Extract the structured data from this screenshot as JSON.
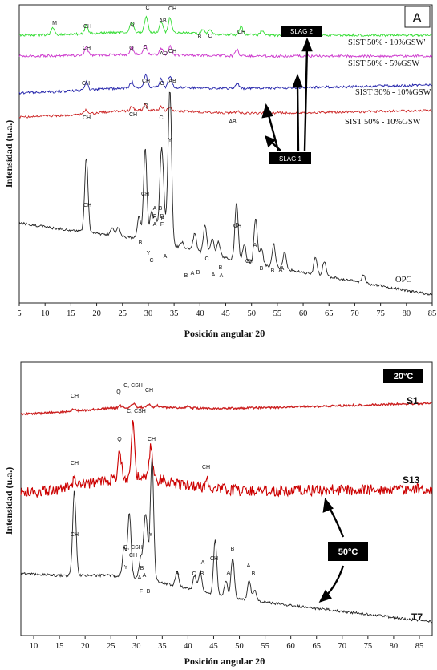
{
  "chart_data": [
    {
      "type": "line",
      "panel_letter": "A",
      "xlabel": "Posición angular 2θ",
      "ylabel": "Intensidad (u.a.)",
      "xlim": [
        5,
        85
      ],
      "xticks": [
        5,
        10,
        15,
        20,
        25,
        30,
        35,
        40,
        45,
        50,
        55,
        60,
        65,
        70,
        75,
        80,
        85
      ],
      "grid": false,
      "series": [
        {
          "name": "SIST 50% - 10%GSW'",
          "color": "#33dd33",
          "peaks": [
            [
              11.5,
              0.5
            ],
            [
              18,
              0.6
            ],
            [
              26.8,
              0.7
            ],
            [
              29.6,
              1.0
            ],
            [
              32.5,
              0.7
            ],
            [
              34.2,
              1.0
            ],
            [
              40.6,
              0.3
            ],
            [
              42,
              0.35
            ],
            [
              48,
              0.6
            ],
            [
              52,
              0.3
            ]
          ]
        },
        {
          "name": "SIST 50% - 5%GSW",
          "color": "#cc33cc",
          "peaks": [
            [
              18,
              0.7
            ],
            [
              26.8,
              0.6
            ],
            [
              29.4,
              0.7
            ],
            [
              32.5,
              0.5
            ],
            [
              34.2,
              0.7
            ],
            [
              47.2,
              0.5
            ]
          ]
        },
        {
          "name": "SIST 30% - 10%GSW",
          "color": "#2222aa",
          "peaks": [
            [
              18,
              0.6
            ],
            [
              26.8,
              0.4
            ],
            [
              29.5,
              0.9
            ],
            [
              32.5,
              0.6
            ],
            [
              34.2,
              0.8
            ],
            [
              47.2,
              0.4
            ]
          ]
        },
        {
          "name": "SIST 50% - 10%GSW",
          "color": "#cc2222",
          "peaks": [
            [
              18,
              0.4
            ],
            [
              26.8,
              0.4
            ],
            [
              29.4,
              0.6
            ],
            [
              32.5,
              0.4
            ],
            [
              34.2,
              0.3
            ],
            [
              47.2,
              0.2
            ]
          ]
        },
        {
          "name": "OPC",
          "color": "#222222",
          "peaks": [
            [
              18,
              1.3
            ],
            [
              23,
              0.12
            ],
            [
              24.2,
              0.15
            ],
            [
              28.2,
              0.4
            ],
            [
              29.4,
              1.6
            ],
            [
              30.6,
              0.5
            ],
            [
              31.4,
              0.4
            ],
            [
              32.4,
              1.0
            ],
            [
              32.8,
              1.0
            ],
            [
              33.7,
              0.4
            ],
            [
              34.2,
              2.6
            ],
            [
              36.5,
              0.1
            ],
            [
              39,
              0.3
            ],
            [
              41,
              0.5
            ],
            [
              42.4,
              0.3
            ],
            [
              43.6,
              0.25
            ],
            [
              47.1,
              1.0
            ],
            [
              48.6,
              0.3
            ],
            [
              50.8,
              0.8
            ],
            [
              51.9,
              0.3
            ],
            [
              54.3,
              0.4
            ],
            [
              56.4,
              0.3
            ],
            [
              62.4,
              0.3
            ],
            [
              64.1,
              0.25
            ],
            [
              71.7,
              0.15
            ]
          ]
        }
      ],
      "annotations": [
        "SLAG 2",
        "SLAG 1"
      ],
      "peak_labels": [
        "M",
        "CH",
        "Q",
        "C",
        "AB",
        "CH",
        "B",
        "C",
        "CH",
        "CH",
        "Q",
        "C",
        "AD",
        "CH",
        "CH",
        "CH",
        "C",
        "AB",
        "CH",
        "CH",
        "Q",
        "C",
        "AB",
        "CH",
        "CH",
        "Y",
        "B",
        "Y",
        "C",
        "A",
        "B",
        "F",
        "A",
        "B",
        "F",
        "CH",
        "A",
        "B",
        "C",
        "A",
        "B",
        "A",
        "D",
        "CH",
        "A",
        "B",
        "B",
        "A",
        "A",
        "B",
        "A",
        "B"
      ],
      "end_label": "OPC"
    },
    {
      "type": "line",
      "xlabel": "Posición angular 2θ",
      "ylabel": "Intensidad (u.a.)",
      "xlim": [
        7.5,
        87.5
      ],
      "xticks": [
        10,
        15,
        20,
        25,
        30,
        35,
        40,
        45,
        50,
        55,
        60,
        65,
        70,
        75,
        80,
        85
      ],
      "grid": false,
      "annotations": [
        "20°C",
        "50°C"
      ],
      "series": [
        {
          "name": "S1",
          "color": "#cc2222",
          "peaks": [
            [
              17.8,
              0.3
            ],
            [
              26.8,
              0.3
            ],
            [
              29.4,
              0.6
            ],
            [
              32.5,
              0.4
            ],
            [
              34,
              0.3
            ],
            [
              40,
              0.2
            ]
          ]
        },
        {
          "name": "S13",
          "color": "#cc0000",
          "peaks": [
            [
              18,
              0.4
            ],
            [
              26.7,
              1.4
            ],
            [
              29.3,
              2.8
            ],
            [
              32.8,
              1.6
            ],
            [
              43.8,
              0.4
            ]
          ]
        },
        {
          "name": "T7",
          "color": "#222222",
          "peaks": [
            [
              17.9,
              1.7
            ],
            [
              27.6,
              0.6
            ],
            [
              28.6,
              1.3
            ],
            [
              30.8,
              0.4
            ],
            [
              31.6,
              0.9
            ],
            [
              32,
              0.7
            ],
            [
              33,
              2.5
            ],
            [
              37.9,
              0.3
            ],
            [
              41.3,
              0.3
            ],
            [
              42.4,
              0.4
            ],
            [
              45.3,
              1.1
            ],
            [
              47.4,
              0.3
            ],
            [
              48.7,
              0.8
            ],
            [
              51.9,
              0.4
            ],
            [
              53,
              0.2
            ]
          ]
        }
      ],
      "peak_labels": [
        "CH",
        "Q",
        "C, CSH",
        "CH",
        "CH",
        "Q",
        "C, CSH",
        "CH",
        "CH",
        "CH",
        "C, CSH",
        "CH",
        "Y",
        "Y",
        "A",
        "B",
        "A",
        "F",
        "B",
        "A",
        "C",
        "A",
        "B",
        "CH",
        "A",
        "B",
        "A",
        "B"
      ]
    }
  ]
}
